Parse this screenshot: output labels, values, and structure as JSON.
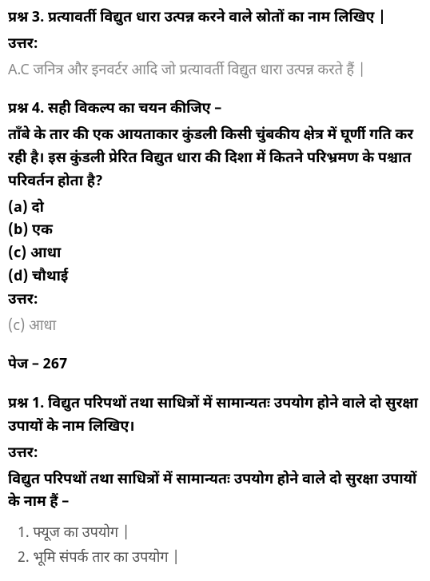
{
  "q3": {
    "label": "प्रश्न 3.",
    "text": "प्रत्यावर्ती विद्युत धारा उत्पन्न करने वाले स्रोतों का नाम लिखिए |",
    "answer_label": "उत्तर:",
    "answer_text": "A.C जनित्र और इनवर्टर आदि जो प्रत्यावर्ती विद्युत धारा उत्पन्न करते हैं |"
  },
  "q4": {
    "label": "प्रश्न 4.",
    "heading": "सही विकल्प का चयन कीजिए –",
    "text": "ताँबे के तार की एक आयताकार कुंडली किसी चुंबकीय क्षेत्र में घूर्णी गति कर रही है। इस कुंडली प्रेरित विद्युत धारा की दिशा में कितने परिभ्रमण के पश्चात परिवर्तन होता है?",
    "options": {
      "a": "(a) दो",
      "b": "(b) एक",
      "c": "(c) आधा",
      "d": "(d) चौथाई"
    },
    "answer_label": "उत्तर:",
    "answer_text": "(c) आधा"
  },
  "page": {
    "label": "पेज – 267"
  },
  "q1": {
    "label": "प्रश्न 1.",
    "text": "विद्युत परिपथों तथा साधित्रों में सामान्यतः उपयोग होने वाले दो सुरक्षा उपायों के नाम लिखिए।",
    "answer_label": "उत्तर:",
    "answer_intro": "विद्युत परिपथों तथा साधित्रों में सामान्यतः उपयोग होने वाले दो सुरक्षा उपायों के नाम हैं –",
    "items": {
      "1": "1. फ्यूज का उपयोग |",
      "2": "2. भूमि संपर्क तार का उपयोग |"
    }
  }
}
